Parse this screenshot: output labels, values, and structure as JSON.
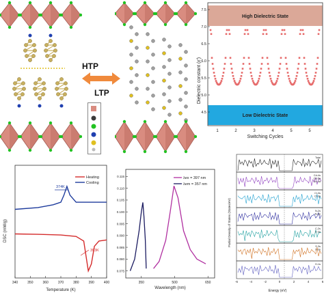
{
  "phase_labels": {
    "htp": "HTP",
    "ltp": "LTP"
  },
  "colors": {
    "octahedron_face": "#d98c80",
    "octahedron_edge": "#a35a52",
    "halide": "#22c222",
    "high_state_band": "#dba898",
    "low_state_band": "#22a8e0",
    "dielectric_points": "#e66a6a",
    "dsc_heating": "#d42a2a",
    "dsc_cooling": "#1c3a9c",
    "pl_purple": "#b02fa0",
    "pl_navy": "#1a1a60"
  },
  "dielectric": {
    "ylabel": "Dielectric constant (ε')",
    "xlabel": "Switching Cycles",
    "high_label": "High Dielectric State",
    "low_label": "Low Dielectric State",
    "yticks": [
      "7.5",
      "7.0",
      "6.5",
      "6.0",
      "5.5",
      "5.0",
      "4.5"
    ],
    "xticks": [
      "1",
      "2",
      "3",
      "4",
      "5",
      "5"
    ]
  },
  "chart_data": [
    {
      "type": "line",
      "title": "",
      "xlabel": "Temperature (K)",
      "ylabel": "DSC (mW/g)",
      "xticks": [
        "340",
        "350",
        "360",
        "370",
        "380",
        "390",
        "400"
      ],
      "series": [
        {
          "name": "Heating",
          "x": [
            340,
            355,
            370,
            380,
            385,
            388,
            390,
            392,
            395,
            400
          ],
          "values": [
            -0.35,
            -0.36,
            -0.38,
            -0.42,
            -0.55,
            -1.4,
            -1.2,
            -0.7,
            -0.55,
            -0.52
          ]
        },
        {
          "name": "Cooling",
          "x": [
            340,
            355,
            365,
            370,
            372,
            374,
            376,
            380,
            390,
            400
          ],
          "values": [
            0.35,
            0.4,
            0.48,
            0.55,
            0.75,
            1.0,
            0.75,
            0.55,
            0.55,
            0.55
          ]
        }
      ],
      "annotations": [
        "374K",
        "393K"
      ]
    },
    {
      "type": "line",
      "title": "",
      "xlabel": "Wavelength (nm)",
      "ylabel": "",
      "yticks": [
        "0.115",
        "0.110",
        "0.105",
        "0.100",
        "0.095",
        "0.090",
        "0.085",
        "0.080",
        "0.075"
      ],
      "xticks": [
        "350",
        "500",
        "650"
      ],
      "series": [
        {
          "name": "λex = 397 nm",
          "x": [
            405,
            430,
            460,
            480,
            497,
            515,
            540,
            570,
            600,
            640
          ],
          "values": [
            0.076,
            0.079,
            0.088,
            0.1,
            0.111,
            0.106,
            0.092,
            0.084,
            0.08,
            0.078
          ]
        },
        {
          "name": "λem = 357 nm",
          "x": [
            300,
            320,
            340,
            350,
            357,
            362,
            368,
            372
          ],
          "values": [
            0.075,
            0.08,
            0.092,
            0.1,
            0.104,
            0.098,
            0.088,
            0.076
          ]
        }
      ]
    }
  ],
  "dos": {
    "xlabel": "Energy (eV)",
    "ylabel": "Partial Density of States (States/eV)",
    "xticks": [
      "-6",
      "-4",
      "-2",
      "0",
      "2",
      "4",
      "6"
    ],
    "panels": [
      {
        "labels": [
          "Total"
        ]
      },
      {
        "labels": [
          "Cd-4s",
          "Cd-5p",
          "Cd-4d"
        ]
      },
      {
        "labels": [
          "Cl-3s",
          "Cl-3p"
        ]
      },
      {
        "labels": [
          "N-2s",
          "N-2p"
        ]
      },
      {
        "labels": [
          "C-2s",
          "C-2p"
        ]
      },
      {
        "labels": [
          "S-3s",
          "S-3p"
        ]
      },
      {
        "labels": [
          "H-1s"
        ]
      }
    ]
  }
}
